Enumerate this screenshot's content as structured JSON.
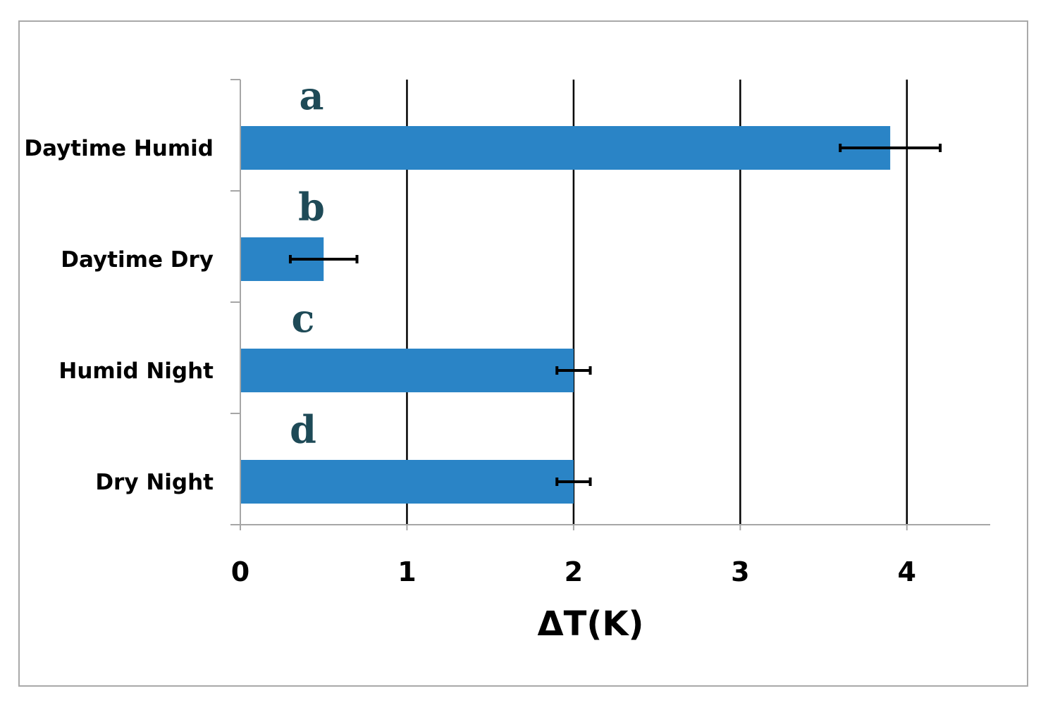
{
  "chart_data": {
    "type": "bar",
    "orientation": "horizontal",
    "categories": [
      "Daytime Humid",
      "Daytime Dry",
      "Humid Night",
      "Dry Night"
    ],
    "values": [
      3.9,
      0.5,
      2.0,
      2.0
    ],
    "errors": [
      0.3,
      0.2,
      0.1,
      0.1
    ],
    "annotations": [
      "a",
      "b",
      "c",
      "d"
    ],
    "xlabel": "ΔT(K)",
    "ylabel": "",
    "title": "",
    "xlim": [
      0,
      4.5
    ],
    "xticks": [
      0,
      1,
      2,
      3,
      4
    ],
    "xtick_labels": [
      "0",
      "1",
      "2",
      "3",
      "4"
    ],
    "grid": "vertical major gridlines",
    "legend": "none",
    "colors": {
      "bar": "#2a84c6",
      "error_bar": "#000000",
      "gridline": "#000000",
      "axis": "#a6a6a6",
      "annotation": "#1e4a57"
    }
  }
}
